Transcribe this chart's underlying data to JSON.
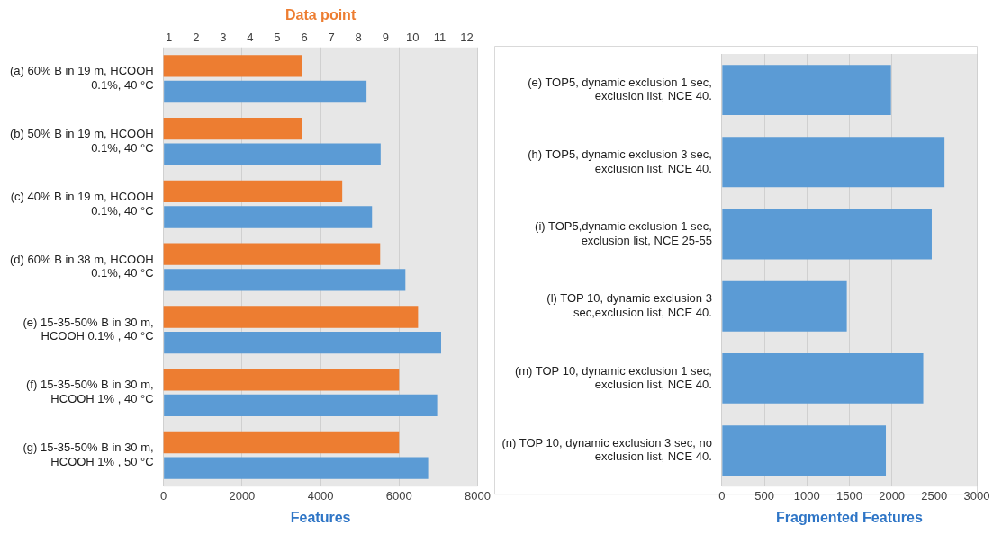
{
  "chart_data": [
    {
      "type": "bar",
      "orientation": "horizontal",
      "categories": [
        "(a) 60% B in 19 m, HCOOH 0.1%, 40 °C",
        "(b) 50% B in 19 m, HCOOH 0.1%, 40 °C",
        "(c) 40% B in 19 m, HCOOH 0.1%, 40 °C",
        "(d) 60% B in 38 m, HCOOH 0.1%, 40 °C",
        "(e) 15-35-50% B in 30 m, HCOOH 0.1% , 40 °C",
        "(f) 15-35-50% B in 30 m, HCOOH 1% , 40 °C",
        "(g) 15-35-50% B in 30 m, HCOOH 1% , 50 °C"
      ],
      "series": [
        {
          "color": "#ed7d31",
          "axis": "x2",
          "values": [
            5.9,
            5.9,
            7.4,
            8.8,
            10.2,
            9.5,
            9.5
          ]
        },
        {
          "color": "#5b9bd5",
          "values": [
            5170,
            5530,
            5310,
            6160,
            7070,
            6970,
            6740
          ]
        }
      ],
      "xlabel": "Features",
      "x2label": "Data point",
      "xlim": [
        0,
        8000
      ],
      "xticks": [
        0,
        2000,
        4000,
        6000,
        8000
      ],
      "x2lim": [
        0.8,
        12.4
      ],
      "x2ticks": [
        1,
        2,
        3,
        4,
        5,
        6,
        7,
        8,
        9,
        10,
        11,
        12
      ],
      "grid": "x",
      "legend": false
    },
    {
      "type": "bar",
      "orientation": "horizontal",
      "categories": [
        "(e) TOP5, dynamic exclusion 1 sec, exclusion list, NCE 40.",
        "(h) TOP5, dynamic exclusion 3 sec, exclusion list, NCE 40.",
        "(i) TOP5,dynamic exclusion 1 sec, exclusion list, NCE 25-55",
        "(l) TOP 10, dynamic exclusion 3 sec,exclusion list, NCE 40.",
        "(m) TOP 10, dynamic exclusion 1 sec, exclusion list, NCE 40.",
        "(n) TOP 10, dynamic exclusion 3 sec, no exclusion list, NCE 40."
      ],
      "series": [
        {
          "color": "#5b9bd5",
          "values": [
            1990,
            2620,
            2470,
            1470,
            2370,
            1930
          ]
        }
      ],
      "xlabel": "Fragmented Features",
      "xlim": [
        0,
        3000
      ],
      "xticks": [
        0,
        500,
        1000,
        1500,
        2000,
        2500,
        3000
      ],
      "grid": "x",
      "legend": false
    }
  ]
}
